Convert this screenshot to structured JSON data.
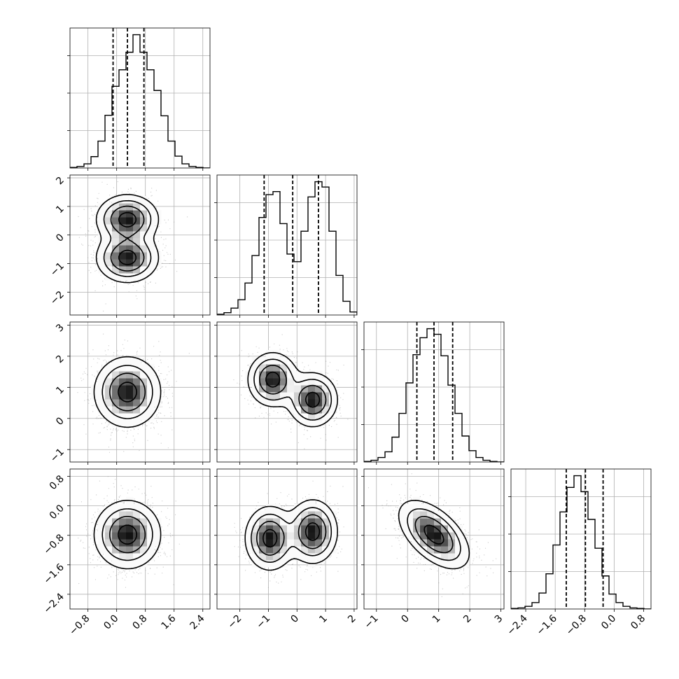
{
  "chart_data": {
    "type": "corner",
    "description_source": "visible",
    "grid": true,
    "parameters": [
      {
        "range": [
          -1.3,
          2.6
        ],
        "ticks": [
          -0.8,
          0.0,
          0.8,
          1.6,
          2.4
        ],
        "tick_labels": [
          "−0.8",
          "0.0",
          "0.8",
          "1.6",
          "2.4"
        ],
        "quantiles": [
          -0.1,
          0.3,
          0.76
        ],
        "mean": 0.3,
        "sd": 0.45
      },
      {
        "range": [
          -2.8,
          2.1
        ],
        "ticks": [
          -2,
          -1,
          0,
          1,
          2
        ],
        "tick_labels": [
          "−2",
          "−1",
          "0",
          "1",
          "2"
        ],
        "quantiles": [
          -1.15,
          -0.15,
          0.75
        ]
      },
      {
        "range": [
          -1.4,
          3.1
        ],
        "ticks": [
          -1,
          0,
          1,
          2,
          3
        ],
        "tick_labels": [
          "−1",
          "0",
          "1",
          "2",
          "3"
        ],
        "quantiles": [
          0.3,
          0.85,
          1.45
        ],
        "mean": 0.85,
        "sd": 0.55
      },
      {
        "range": [
          -2.8,
          1.0
        ],
        "ticks": [
          -2.4,
          -1.6,
          -0.8,
          0.0,
          0.8
        ],
        "tick_labels": [
          "−2.4",
          "−1.6",
          "−0.8",
          "0.0",
          "0.8"
        ],
        "quantiles": [
          -1.3,
          -0.78,
          -0.3
        ],
        "mean": -0.78,
        "sd": 0.45
      }
    ],
    "histograms": [
      {
        "param": 0,
        "counts": [
          1,
          3,
          8,
          22,
          52,
          102,
          158,
          190,
          224,
          258,
          224,
          190,
          150,
          101,
          52,
          23,
          8,
          3,
          1,
          0
        ]
      },
      {
        "param": 1,
        "counts": [
          1,
          3,
          9,
          20,
          42,
          78,
          128,
          158,
          162,
          120,
          80,
          70,
          110,
          155,
          175,
          168,
          110,
          52,
          18,
          4
        ]
      },
      {
        "param": 2,
        "counts": [
          1,
          3,
          8,
          18,
          44,
          86,
          140,
          190,
          220,
          236,
          226,
          188,
          136,
          86,
          46,
          20,
          8,
          3,
          1,
          0
        ]
      },
      {
        "param": 3,
        "counts": [
          1,
          2,
          5,
          12,
          30,
          66,
          120,
          182,
          228,
          250,
          220,
          168,
          114,
          62,
          28,
          12,
          5,
          2,
          1,
          0
        ]
      }
    ],
    "density_components": [
      {
        "row": 1,
        "col": 0,
        "modes": [
          {
            "x": 0.3,
            "y": 0.55,
            "w": 0.5
          },
          {
            "x": 0.3,
            "y": -0.8,
            "w": 0.5
          }
        ],
        "sx": 0.42,
        "sy": 0.42
      },
      {
        "row": 2,
        "col": 0,
        "modes": [
          {
            "x": 0.3,
            "y": 0.85,
            "w": 1.0
          }
        ],
        "sx": 0.45,
        "sy": 0.55
      },
      {
        "row": 2,
        "col": 1,
        "modes": [
          {
            "x": -0.85,
            "y": 1.25,
            "w": 0.5
          },
          {
            "x": 0.55,
            "y": 0.6,
            "w": 0.5
          }
        ],
        "sx": 0.42,
        "sy": 0.42
      },
      {
        "row": 3,
        "col": 0,
        "modes": [
          {
            "x": 0.3,
            "y": -0.78,
            "w": 1.0
          }
        ],
        "sx": 0.45,
        "sy": 0.45
      },
      {
        "row": 3,
        "col": 1,
        "modes": [
          {
            "x": -0.95,
            "y": -0.88,
            "w": 0.5
          },
          {
            "x": 0.55,
            "y": -0.7,
            "w": 0.5
          }
        ],
        "sx": 0.42,
        "sy": 0.42
      },
      {
        "row": 3,
        "col": 2,
        "modes": [
          {
            "x": 0.85,
            "y": -0.78,
            "w": 1.0
          }
        ],
        "sx": 0.55,
        "sy": 0.45,
        "rho": -0.55
      }
    ]
  }
}
